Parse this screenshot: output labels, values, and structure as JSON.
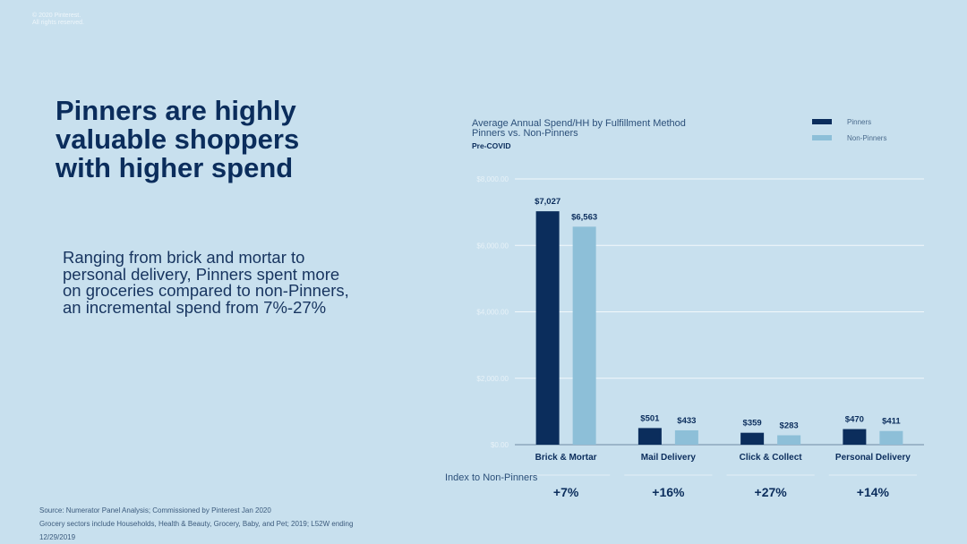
{
  "copyright": [
    "© 2020 Pinterest.",
    "All rights reserved."
  ],
  "headline": "Pinners are highly valuable shoppers with higher spend",
  "body_text": "Ranging from brick and mortar to personal delivery, Pinners spent more on groceries compared to non-Pinners, an incremental spend from 7%-27%",
  "source": [
    "Source: Numerator Panel Analysis; Commissioned by Pinterest Jan 2020",
    "Grocery sectors include Households, Health & Beauty, Grocery, Baby, and Pet; 2019; L52W ending",
    "12/29/2019"
  ],
  "colors": {
    "background": "#c8e0ee",
    "pinners": "#0b2d5c",
    "non_pinners": "#8dbfd8",
    "gridline": "#f2f8fb"
  },
  "chart_data": {
    "type": "bar",
    "title": "Average Annual Spend/HH by Fulfillment Method",
    "title_line2": "Pinners vs. Non-Pinners",
    "subtitle": "Pre-COVID",
    "categories": [
      "Brick & Mortar",
      "Mail Delivery",
      "Click & Collect",
      "Personal Delivery"
    ],
    "series": [
      {
        "name": "Pinners",
        "values": [
          7027,
          501,
          359,
          470
        ],
        "labels": [
          "$7,027",
          "$501",
          "$359",
          "$470"
        ],
        "color": "#0b2d5c"
      },
      {
        "name": "Non-Pinners",
        "values": [
          6563,
          433,
          283,
          411
        ],
        "labels": [
          "$6,563",
          "$433",
          "$283",
          "$411"
        ],
        "color": "#8dbfd8"
      }
    ],
    "yticks": [
      0,
      2000,
      4000,
      6000,
      8000
    ],
    "ytick_labels": [
      "$0.00",
      "$2,000.00",
      "$4,000.00",
      "$6,000.00",
      "$8,000.00"
    ],
    "ylim": [
      0,
      8000
    ],
    "grid": true,
    "legend_position": "top-right",
    "index_label": "Index to Non-Pinners",
    "index_values": [
      "+7%",
      "+16%",
      "+27%",
      "+14%"
    ]
  }
}
